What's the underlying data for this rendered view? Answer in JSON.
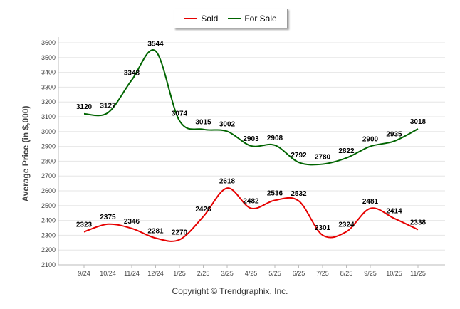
{
  "chart_data": {
    "type": "line",
    "title": "",
    "xlabel": "",
    "ylabel": "Average Price (in $,000)",
    "categories": [
      "9/24",
      "10/24",
      "11/24",
      "12/24",
      "1/25",
      "2/25",
      "3/25",
      "4/25",
      "5/25",
      "6/25",
      "7/25",
      "8/25",
      "9/25",
      "10/25",
      "11/25"
    ],
    "ylim": [
      2100,
      3600
    ],
    "yticks": [
      2100,
      2200,
      2300,
      2400,
      2500,
      2600,
      2700,
      2800,
      2900,
      3000,
      3100,
      3200,
      3300,
      3400,
      3500,
      3600
    ],
    "grid": true,
    "legend_position": "top-center",
    "series": [
      {
        "name": "Sold",
        "color": "#e60000",
        "values": [
          2323,
          2375,
          2346,
          2281,
          2270,
          2426,
          2618,
          2482,
          2536,
          2532,
          2301,
          2324,
          2481,
          2414,
          2338
        ]
      },
      {
        "name": "For Sale",
        "color": "#006400",
        "values": [
          3120,
          3127,
          3348,
          3544,
          3074,
          3015,
          3002,
          2903,
          2908,
          2792,
          2780,
          2822,
          2900,
          2935,
          3018
        ]
      }
    ]
  },
  "legend": {
    "sold_label": "Sold",
    "for_sale_label": "For Sale"
  },
  "footer": {
    "copyright": "Copyright © Trendgraphix, Inc."
  }
}
